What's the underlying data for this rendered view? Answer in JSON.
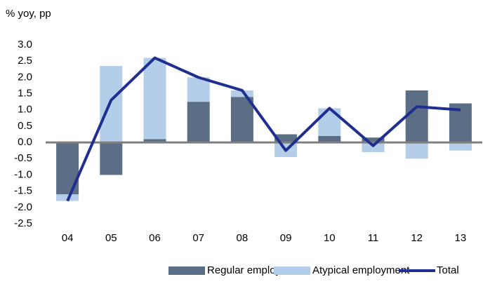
{
  "chart_data": {
    "type": "stacked-bar-line",
    "subtitle": "% yoy, pp",
    "categories": [
      "04",
      "05",
      "06",
      "07",
      "08",
      "09",
      "10",
      "11",
      "12",
      "13"
    ],
    "series": [
      {
        "name": "Regular employment",
        "kind": "bar",
        "color": "#5b6e85",
        "values": [
          -1.6,
          -1.0,
          0.1,
          1.25,
          1.4,
          0.25,
          0.2,
          0.15,
          1.6,
          1.2
        ]
      },
      {
        "name": "Atypical employment",
        "kind": "bar",
        "color": "#b4cde8",
        "values": [
          -0.2,
          2.35,
          2.5,
          0.75,
          0.2,
          -0.45,
          0.85,
          -0.3,
          -0.5,
          -0.25
        ]
      },
      {
        "name": "Total",
        "kind": "line",
        "color": "#1f2f8f",
        "values": [
          -1.8,
          1.3,
          2.6,
          2.0,
          1.6,
          -0.25,
          1.05,
          -0.1,
          1.1,
          1.0
        ]
      }
    ],
    "ylim": [
      -2.5,
      3.0
    ],
    "yticks": [
      {
        "value": 3.0,
        "label": "3.0"
      },
      2.5,
      {
        "value": 2.0,
        "label": "2.0"
      },
      1.5,
      {
        "value": 1.0,
        "label": "1.0"
      },
      0.5,
      {
        "value": 0.0,
        "label": "0.0"
      },
      -0.5,
      {
        "value": -1.0,
        "label": "-1.0"
      },
      -1.5,
      {
        "value": -2.0,
        "label": "-2.0"
      },
      -2.5
    ],
    "grid": false,
    "legend": "bottom"
  }
}
